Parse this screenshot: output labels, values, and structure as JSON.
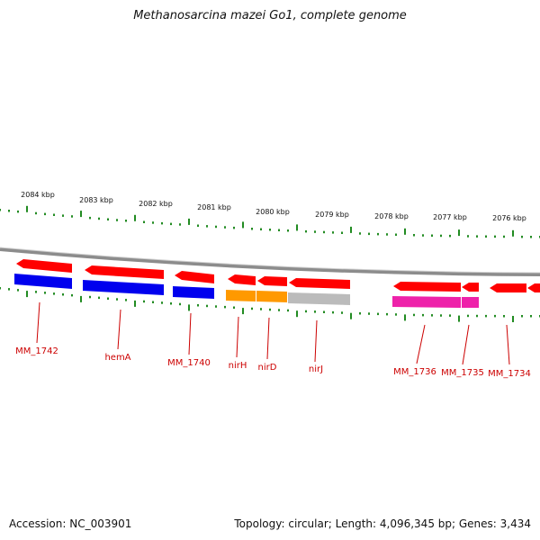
{
  "title": "Methanosarcina mazei Go1, complete genome",
  "footer": {
    "accession": "Accession: NC_003901",
    "summary": "Topology: circular; Length: 4,096,345 bp; Genes: 3,434"
  },
  "colors": {
    "forward": "#ff0000",
    "blue": "#0000ee",
    "orange": "#ff9900",
    "gray": "#bbbbbb",
    "magenta": "#ee22aa",
    "backbone": "#8c8c8c",
    "tick": "#228b22",
    "label": "#cc0000"
  },
  "scale_labels": [
    "2084 kbp",
    "2083 kbp",
    "2082 kbp",
    "2081 kbp",
    "2080 kbp",
    "2079 kbp",
    "2078 kbp",
    "2077 kbp",
    "2076 kbp"
  ],
  "gene_labels": [
    "MM_1742",
    "hemA",
    "MM_1740",
    "nirH",
    "nirD",
    "nirJ",
    "MM_1736",
    "MM_1735",
    "MM_1734"
  ]
}
